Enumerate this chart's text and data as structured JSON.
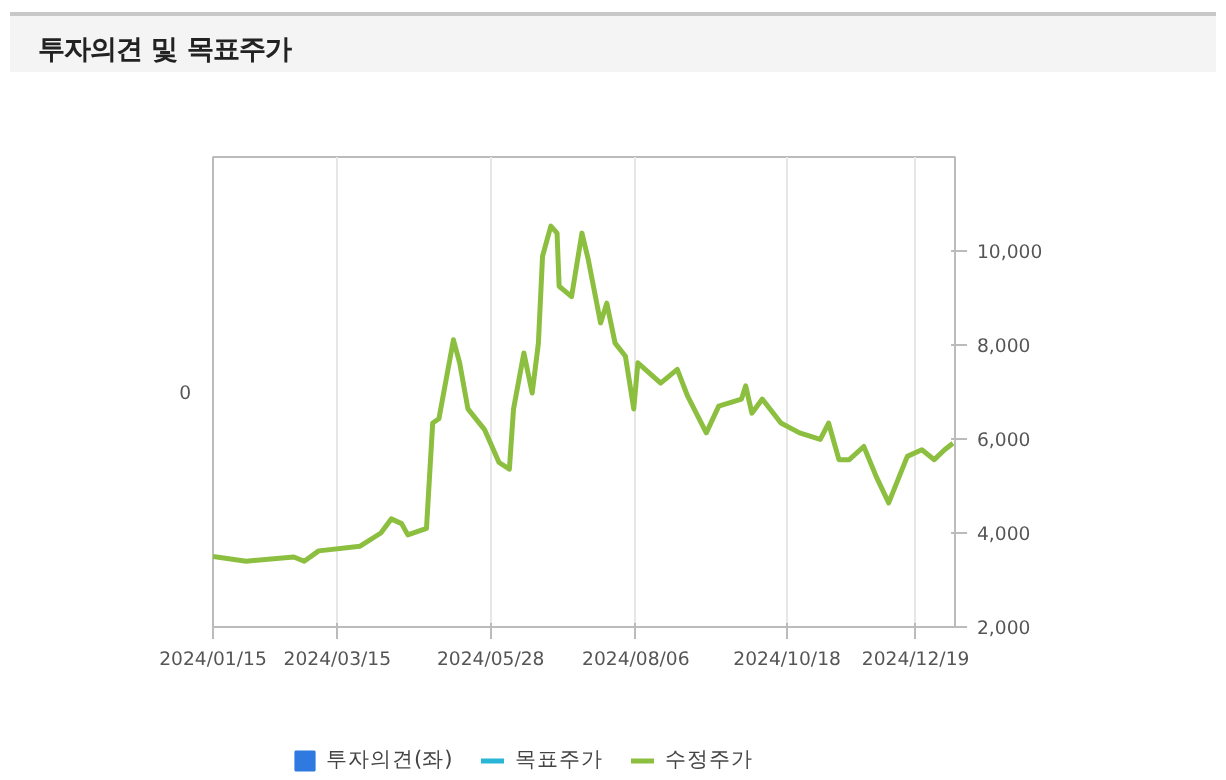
{
  "chart_data": {
    "type": "line",
    "title": "투자의견 및 목표주가",
    "legend": "bottom",
    "grid": "x",
    "annotations": [
      "0"
    ],
    "xlim": [
      "2024-01-15",
      "2025-01-07"
    ],
    "xticks": [
      {
        "value": "2024-01-15",
        "label": "2024/01/15"
      },
      {
        "value": "2024-03-15",
        "label": "2024/03/15"
      },
      {
        "value": "2024-05-28",
        "label": "2024/05/28"
      },
      {
        "value": "2024-08-06",
        "label": "2024/08/06"
      },
      {
        "value": "2024-10-18",
        "label": "2024/10/18"
      },
      {
        "value": "2024-12-19",
        "label": "2024/12/19"
      }
    ],
    "ylim": [
      2000,
      12000
    ],
    "yticks": [
      {
        "value": 2000,
        "label": "2,000"
      },
      {
        "value": 4000,
        "label": "4,000"
      },
      {
        "value": 6000,
        "label": "6,000"
      },
      {
        "value": 8000,
        "label": "8,000"
      },
      {
        "value": 10000,
        "label": "10,000"
      }
    ],
    "series": [
      {
        "name": "투자의견(좌)",
        "type": "bar",
        "color": "#2f7ae0"
      },
      {
        "name": "목표주가",
        "color": "#29b6d6"
      },
      {
        "name": "수정주가",
        "color": "#8cbf3f",
        "x": [
          "2024-01-15",
          "2024-01-31",
          "2024-02-23",
          "2024-02-28",
          "2024-03-06",
          "2024-03-26",
          "2024-04-05",
          "2024-04-10",
          "2024-04-15",
          "2024-04-18",
          "2024-04-27",
          "2024-04-30",
          "2024-05-03",
          "2024-05-10",
          "2024-05-13",
          "2024-05-17",
          "2024-05-25",
          "2024-06-01",
          "2024-06-06",
          "2024-06-08",
          "2024-06-13",
          "2024-06-17",
          "2024-06-20",
          "2024-06-22",
          "2024-06-26",
          "2024-06-29",
          "2024-06-30",
          "2024-07-06",
          "2024-07-11",
          "2024-07-14",
          "2024-07-20",
          "2024-07-23",
          "2024-07-27",
          "2024-08-01",
          "2024-08-05",
          "2024-08-07",
          "2024-08-18",
          "2024-08-26",
          "2024-08-31",
          "2024-09-09",
          "2024-09-15",
          "2024-09-26",
          "2024-09-28",
          "2024-10-01",
          "2024-10-06",
          "2024-10-15",
          "2024-10-24",
          "2024-11-03",
          "2024-11-07",
          "2024-11-12",
          "2024-11-17",
          "2024-11-24",
          "2024-11-30",
          "2024-12-06",
          "2024-12-15",
          "2024-12-22",
          "2024-12-28",
          "2025-01-02",
          "2025-01-06"
        ],
        "values": [
          3500,
          3400,
          3490,
          3400,
          3620,
          3720,
          4000,
          4300,
          4200,
          3960,
          4100,
          6340,
          6430,
          8110,
          7620,
          6640,
          6200,
          5500,
          5360,
          6640,
          7830,
          6980,
          8040,
          9890,
          10530,
          10380,
          9250,
          9030,
          10380,
          9830,
          8470,
          8890,
          8040,
          7760,
          6640,
          7620,
          7190,
          7480,
          6910,
          6130,
          6700,
          6850,
          7130,
          6550,
          6850,
          6340,
          6130,
          5990,
          6340,
          5560,
          5560,
          5840,
          5200,
          4640,
          5630,
          5770,
          5560,
          5770,
          5910
        ]
      }
    ]
  }
}
